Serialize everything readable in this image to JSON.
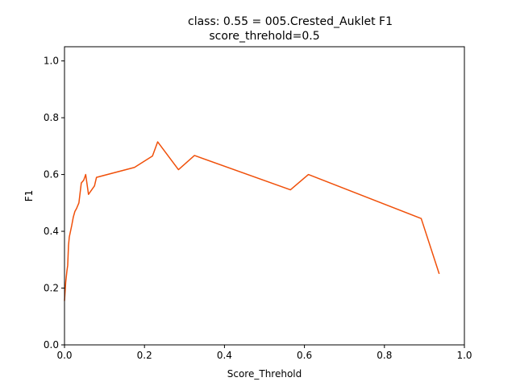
{
  "chart_data": {
    "type": "line",
    "title": "class: 0.55 = 005.Crested_Auklet F1",
    "subtitle": "score_threhold=0.5",
    "xlabel": "Score_Threhold",
    "ylabel": "F1",
    "xlim": [
      0.0,
      1.0
    ],
    "ylim": [
      0.0,
      1.05
    ],
    "xticks": [
      0.0,
      0.2,
      0.4,
      0.6,
      0.8,
      1.0
    ],
    "xtick_labels": [
      "0.0",
      "0.2",
      "0.4",
      "0.6",
      "0.8",
      "1.0"
    ],
    "yticks": [
      0.0,
      0.2,
      0.4,
      0.6,
      0.8,
      1.0
    ],
    "ytick_labels": [
      "0.0",
      "0.2",
      "0.4",
      "0.6",
      "0.8",
      "1.0"
    ],
    "grid": false,
    "legend": "none",
    "series": [
      {
        "color": "#f0500a",
        "x": [
          0.0,
          0.003,
          0.006,
          0.008,
          0.01,
          0.012,
          0.015,
          0.018,
          0.022,
          0.026,
          0.03,
          0.036,
          0.042,
          0.048,
          0.053,
          0.06,
          0.075,
          0.08,
          0.175,
          0.22,
          0.233,
          0.285,
          0.325,
          0.565,
          0.61,
          0.892,
          0.937
        ],
        "y": [
          0.155,
          0.22,
          0.26,
          0.28,
          0.35,
          0.38,
          0.4,
          0.42,
          0.45,
          0.47,
          0.48,
          0.5,
          0.57,
          0.58,
          0.6,
          0.53,
          0.56,
          0.59,
          0.625,
          0.665,
          0.715,
          0.617,
          0.667,
          0.546,
          0.6,
          0.445,
          0.25
        ]
      }
    ]
  }
}
